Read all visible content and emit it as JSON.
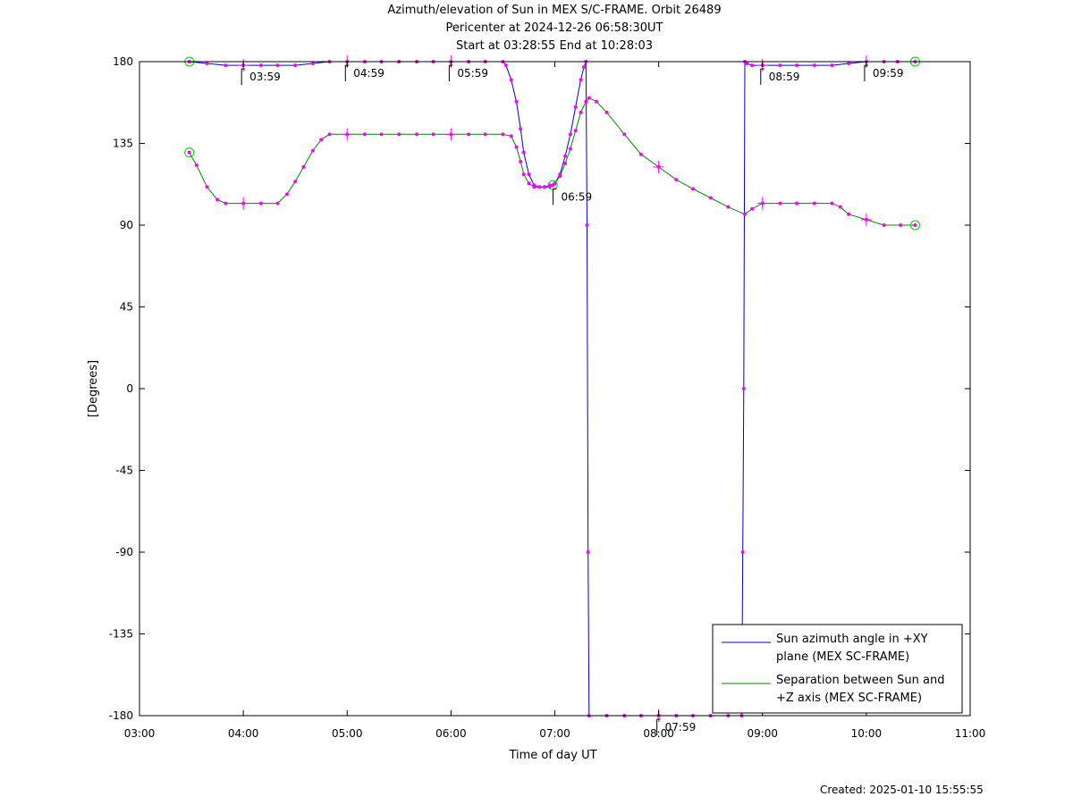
{
  "header": {
    "title": "Azimuth/elevation of Sun in MEX S/C-FRAME.  Orbit 26489",
    "pericenter": "Pericenter at 2024-12-26 06:58:30UT",
    "span": "Start at 03:28:55 End at 10:28:03"
  },
  "footer": {
    "created": "Created: 2025-01-10 15:55:55"
  },
  "colors": {
    "azimuth": "#0000cc",
    "separation": "#008800",
    "markers": "#ff00ff",
    "endpoints": "#00cc00"
  },
  "chart_data": {
    "type": "line",
    "title": "Azimuth/elevation of Sun in MEX S/C-FRAME.  Orbit 26489",
    "xlabel": "Time of day UT",
    "ylabel": "[Degrees]",
    "xlim": [
      3,
      11
    ],
    "ylim": [
      -180,
      180
    ],
    "x_ticks": [
      3,
      4,
      5,
      6,
      7,
      8,
      9,
      10,
      11
    ],
    "x_tick_labels": [
      "03:00",
      "04:00",
      "05:00",
      "06:00",
      "07:00",
      "08:00",
      "09:00",
      "10:00",
      "11:00"
    ],
    "y_ticks": [
      180,
      135,
      90,
      45,
      0,
      -45,
      -90,
      -135,
      -180
    ],
    "y_tick_labels": [
      "180",
      "135",
      "90",
      "45",
      "0",
      "-45",
      "-90",
      "-135",
      "-180"
    ],
    "grid": false,
    "legend_position": "bottom-right",
    "series": [
      {
        "name": "Sun azimuth angle in +XY plane (MEX SC-FRAME)",
        "legend_lines": [
          "Sun azimuth angle in +XY",
          "plane (MEX SC-FRAME)"
        ],
        "x": [
          3.48,
          3.65,
          3.83,
          4.0,
          4.17,
          4.33,
          4.5,
          4.67,
          4.83,
          5.0,
          5.17,
          5.33,
          5.5,
          5.67,
          5.83,
          6.0,
          6.17,
          6.33,
          6.5,
          6.53,
          6.58,
          6.63,
          6.67,
          6.7,
          6.75,
          6.8,
          6.85,
          6.9,
          6.95,
          6.98,
          7.0,
          7.05,
          7.1,
          7.15,
          7.2,
          7.25,
          7.28,
          7.3,
          7.31,
          7.32,
          7.33,
          7.5,
          7.67,
          7.83,
          8.0,
          8.17,
          8.33,
          8.5,
          8.67,
          8.8,
          8.81,
          8.82,
          8.83,
          8.85,
          8.9,
          9.0,
          9.17,
          9.33,
          9.5,
          9.67,
          9.83,
          10.0,
          10.17,
          10.3,
          10.47
        ],
        "y": [
          180,
          179,
          178,
          178,
          178,
          178,
          178,
          179,
          180,
          180,
          180,
          180,
          180,
          180,
          180,
          180,
          180,
          180,
          180,
          178,
          170,
          158,
          143,
          130,
          118,
          112,
          111,
          111,
          111,
          112,
          113,
          118,
          128,
          140,
          155,
          170,
          177,
          180,
          90,
          -90,
          -180,
          -180,
          -180,
          -180,
          -180,
          -180,
          -180,
          -180,
          -180,
          -180,
          -90,
          0,
          180,
          179,
          178,
          178,
          178,
          178,
          178,
          178,
          179,
          180,
          180,
          180,
          180
        ]
      },
      {
        "name": "Separation between Sun and +Z axis (MEX SC-FRAME)",
        "legend_lines": [
          "Separation between Sun and",
          "+Z axis (MEX SC-FRAME)"
        ],
        "x": [
          3.48,
          3.55,
          3.65,
          3.75,
          3.83,
          4.0,
          4.17,
          4.33,
          4.42,
          4.5,
          4.58,
          4.67,
          4.75,
          4.83,
          5.0,
          5.17,
          5.33,
          5.5,
          5.67,
          5.83,
          6.0,
          6.17,
          6.33,
          6.5,
          6.58,
          6.63,
          6.67,
          6.7,
          6.75,
          6.8,
          6.85,
          6.9,
          6.95,
          6.98,
          7.0,
          7.05,
          7.1,
          7.15,
          7.2,
          7.25,
          7.3,
          7.33,
          7.4,
          7.5,
          7.67,
          7.83,
          8.0,
          8.17,
          8.33,
          8.5,
          8.67,
          8.83,
          8.9,
          9.0,
          9.17,
          9.33,
          9.5,
          9.67,
          9.75,
          9.83,
          10.0,
          10.17,
          10.33,
          10.47
        ],
        "y": [
          130,
          123,
          111,
          104,
          102,
          102,
          102,
          102,
          107,
          114,
          122,
          131,
          137,
          140,
          140,
          140,
          140,
          140,
          140,
          140,
          140,
          140,
          140,
          140,
          139,
          133,
          125,
          118,
          113,
          111,
          111,
          111,
          112,
          112,
          113,
          117,
          124,
          132,
          142,
          152,
          158,
          160,
          158,
          152,
          140,
          129,
          122,
          115,
          110,
          105,
          100,
          96,
          99,
          102,
          102,
          102,
          102,
          102,
          100,
          96,
          93,
          90,
          90,
          90
        ]
      }
    ],
    "annotations": [
      {
        "label": "03:59",
        "x": 3.983,
        "y": 178
      },
      {
        "label": "04:59",
        "x": 4.983,
        "y": 180
      },
      {
        "label": "05:59",
        "x": 5.983,
        "y": 180
      },
      {
        "label": "06:59",
        "x": 6.983,
        "y": 112
      },
      {
        "label": "07:59",
        "x": 7.983,
        "y": -180
      },
      {
        "label": "08:59",
        "x": 8.983,
        "y": 178
      },
      {
        "label": "09:59",
        "x": 9.983,
        "y": 180
      }
    ],
    "end_markers": [
      {
        "x": 3.48,
        "y": 180
      },
      {
        "x": 10.47,
        "y": 180
      },
      {
        "x": 3.48,
        "y": 130
      },
      {
        "x": 10.47,
        "y": 90
      },
      {
        "x": 6.98,
        "y": 112
      }
    ],
    "hour_crosses": [
      {
        "x": 4.0,
        "y": 178
      },
      {
        "x": 5.0,
        "y": 180
      },
      {
        "x": 6.0,
        "y": 180
      },
      {
        "x": 8.0,
        "y": -180
      },
      {
        "x": 9.0,
        "y": 178
      },
      {
        "x": 10.0,
        "y": 180
      },
      {
        "x": 4.0,
        "y": 102
      },
      {
        "x": 5.0,
        "y": 140
      },
      {
        "x": 6.0,
        "y": 140
      },
      {
        "x": 8.0,
        "y": 122
      },
      {
        "x": 9.0,
        "y": 102
      },
      {
        "x": 10.0,
        "y": 93
      }
    ]
  }
}
